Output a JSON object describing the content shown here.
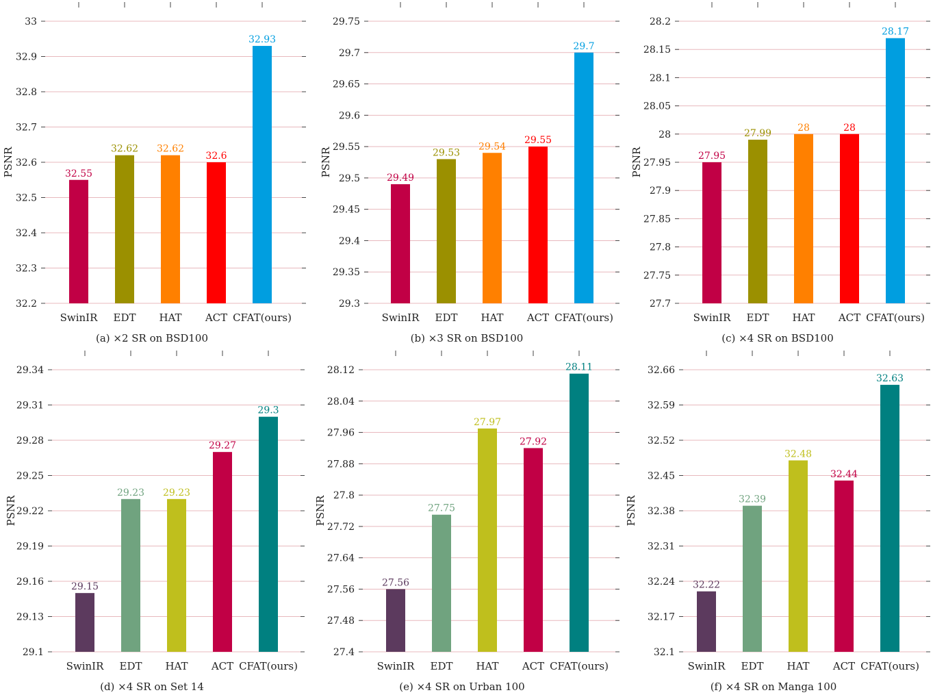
{
  "chart_data": [
    {
      "type": "bar",
      "caption": "(a) ×2 SR on BSD100",
      "ylabel": "PSNR",
      "categories": [
        "SwinIR",
        "EDT",
        "HAT",
        "ACT",
        "CFAT(ours)"
      ],
      "values": [
        32.55,
        32.62,
        32.62,
        32.6,
        32.93
      ],
      "value_labels": [
        "32.55",
        "32.62",
        "32.62",
        "32.6",
        "32.93"
      ],
      "colors": [
        "#c10045",
        "#9b9000",
        "#ff8000",
        "#ff0000",
        "#009ee0"
      ],
      "ylim": [
        32.2,
        33.0
      ],
      "yticks": [
        32.2,
        32.3,
        32.4,
        32.5,
        32.6,
        32.7,
        32.8,
        32.9,
        33.0
      ],
      "ytick_labels": [
        "32.2",
        "32.3",
        "32.4",
        "32.5",
        "32.6",
        "32.7",
        "32.8",
        "32.9",
        "33"
      ],
      "grid": true
    },
    {
      "type": "bar",
      "caption": "(b) ×3 SR on BSD100",
      "ylabel": "PSNR",
      "categories": [
        "SwinIR",
        "EDT",
        "HAT",
        "ACT",
        "CFAT(ours)"
      ],
      "values": [
        29.49,
        29.53,
        29.54,
        29.55,
        29.7
      ],
      "value_labels": [
        "29.49",
        "29.53",
        "29.54",
        "29.55",
        "29.7"
      ],
      "colors": [
        "#c10045",
        "#9b9000",
        "#ff8000",
        "#ff0000",
        "#009ee0"
      ],
      "ylim": [
        29.3,
        29.75
      ],
      "yticks": [
        29.3,
        29.35,
        29.4,
        29.45,
        29.5,
        29.55,
        29.6,
        29.65,
        29.7,
        29.75
      ],
      "ytick_labels": [
        "29.3",
        "29.35",
        "29.4",
        "29.45",
        "29.5",
        "29.55",
        "29.6",
        "29.65",
        "29.7",
        "29.75"
      ],
      "grid": true
    },
    {
      "type": "bar",
      "caption": "(c) ×4 SR on BSD100",
      "ylabel": "PSNR",
      "categories": [
        "SwinIR",
        "EDT",
        "HAT",
        "ACT",
        "CFAT(ours)"
      ],
      "values": [
        27.95,
        27.99,
        28.0,
        28.0,
        28.17
      ],
      "value_labels": [
        "27.95",
        "27.99",
        "28",
        "28",
        "28.17"
      ],
      "colors": [
        "#c10045",
        "#9b9000",
        "#ff8000",
        "#ff0000",
        "#009ee0"
      ],
      "ylim": [
        27.7,
        28.2
      ],
      "yticks": [
        27.7,
        27.75,
        27.8,
        27.85,
        27.9,
        27.95,
        28.0,
        28.05,
        28.1,
        28.15,
        28.2
      ],
      "ytick_labels": [
        "27.7",
        "27.75",
        "27.8",
        "27.85",
        "27.9",
        "27.95",
        "28",
        "28.05",
        "28.1",
        "28.15",
        "28.2"
      ],
      "grid": true
    },
    {
      "type": "bar",
      "caption": "(d) ×4 SR on Set 14",
      "ylabel": "PSNR",
      "categories": [
        "SwinIR",
        "EDT",
        "HAT",
        "ACT",
        "CFAT(ours)"
      ],
      "values": [
        29.15,
        29.23,
        29.23,
        29.27,
        29.3
      ],
      "value_labels": [
        "29.15",
        "29.23",
        "29.23",
        "29.27",
        "29.3"
      ],
      "colors": [
        "#5c3a5e",
        "#70a37f",
        "#bfbf1d",
        "#c10045",
        "#008080"
      ],
      "ylim": [
        29.1,
        29.34
      ],
      "yticks": [
        29.1,
        29.13,
        29.16,
        29.19,
        29.22,
        29.25,
        29.28,
        29.31,
        29.34
      ],
      "ytick_labels": [
        "29.1",
        "29.13",
        "29.16",
        "29.19",
        "29.22",
        "29.25",
        "29.28",
        "29.31",
        "29.34"
      ],
      "grid": true
    },
    {
      "type": "bar",
      "caption": "(e) ×4 SR on Urban 100",
      "ylabel": "PSNR",
      "categories": [
        "SwinIR",
        "EDT",
        "HAT",
        "ACT",
        "CFAT(ours)"
      ],
      "values": [
        27.56,
        27.75,
        27.97,
        27.92,
        28.11
      ],
      "value_labels": [
        "27.56",
        "27.75",
        "27.97",
        "27.92",
        "28.11"
      ],
      "colors": [
        "#5c3a5e",
        "#70a37f",
        "#bfbf1d",
        "#c10045",
        "#008080"
      ],
      "ylim": [
        27.4,
        28.12
      ],
      "yticks": [
        27.4,
        27.48,
        27.56,
        27.64,
        27.72,
        27.8,
        27.88,
        27.96,
        28.04,
        28.12
      ],
      "ytick_labels": [
        "27.4",
        "27.48",
        "27.56",
        "27.64",
        "27.72",
        "27.8",
        "27.88",
        "27.96",
        "28.04",
        "28.12"
      ],
      "grid": true
    },
    {
      "type": "bar",
      "caption": "(f) ×4 SR on Manga 100",
      "ylabel": "PSNR",
      "categories": [
        "SwinIR",
        "EDT",
        "HAT",
        "ACT",
        "CFAT(ours)"
      ],
      "values": [
        32.22,
        32.39,
        32.48,
        32.44,
        32.63
      ],
      "value_labels": [
        "32.22",
        "32.39",
        "32.48",
        "32.44",
        "32.63"
      ],
      "colors": [
        "#5c3a5e",
        "#70a37f",
        "#bfbf1d",
        "#c10045",
        "#008080"
      ],
      "ylim": [
        32.1,
        32.66
      ],
      "yticks": [
        32.1,
        32.17,
        32.24,
        32.31,
        32.38,
        32.45,
        32.52,
        32.59,
        32.66
      ],
      "ytick_labels": [
        "32.1",
        "32.17",
        "32.24",
        "32.31",
        "32.38",
        "32.45",
        "32.52",
        "32.59",
        "32.66"
      ],
      "grid": true
    }
  ],
  "colors": {
    "grid": "#e8b8bd",
    "axis": "#444444",
    "text": "#222222"
  }
}
